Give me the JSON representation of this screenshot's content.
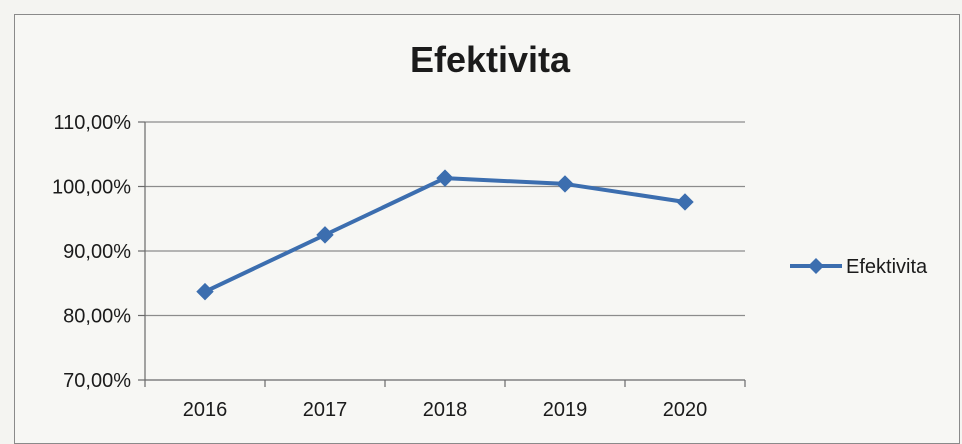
{
  "chart_data": {
    "type": "line",
    "title": "Efektivita",
    "xlabel": "",
    "ylabel": "",
    "categories": [
      "2016",
      "2017",
      "2018",
      "2019",
      "2020"
    ],
    "series": [
      {
        "name": "Efektivita",
        "values": [
          83.7,
          92.5,
          101.3,
          100.4,
          97.6
        ],
        "color": "#3c6eaf"
      }
    ],
    "ylim": [
      70,
      110
    ],
    "yticks": [
      110,
      100,
      90,
      80,
      70
    ],
    "ytick_labels": [
      "110,00%",
      "100,00%",
      "90,00%",
      "80,00%",
      "70,00%"
    ],
    "grid": true,
    "legend": "right",
    "marker": "diamond"
  }
}
